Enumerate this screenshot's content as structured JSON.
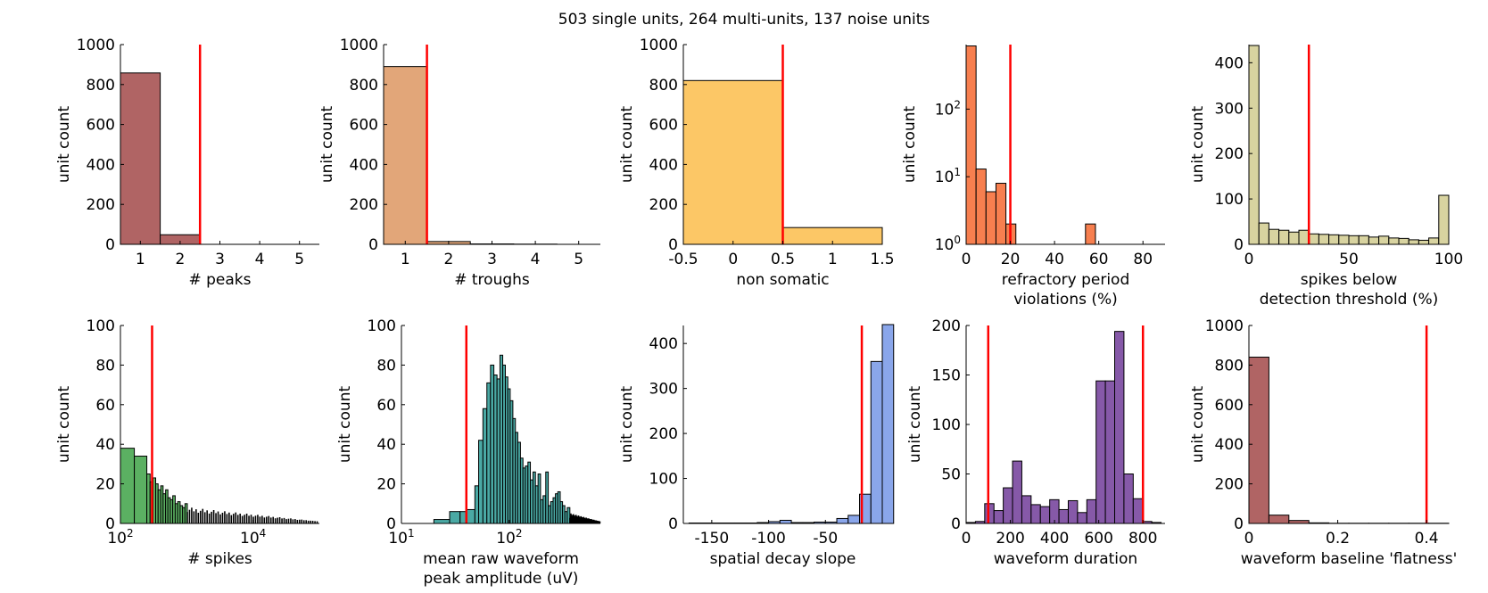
{
  "figure": {
    "title": "503 single units, 264 multi-units, 137 noise units",
    "threshold_color": "#ff0000"
  },
  "chart_data": [
    {
      "type": "bar",
      "xlabel": [
        "# peaks"
      ],
      "ylabel": "unit count",
      "xlim": [
        0.5,
        5.5
      ],
      "ylim": [
        0,
        1000
      ],
      "xticks": [
        1,
        2,
        3,
        4,
        5
      ],
      "xtick_labels": [
        "1",
        "2",
        "3",
        "4",
        "5"
      ],
      "yticks": [
        0,
        200,
        400,
        600,
        800,
        1000
      ],
      "ytick_labels": [
        "0",
        "200",
        "400",
        "600",
        "800",
        "1000"
      ],
      "bar_color": "#b06464",
      "bins": [
        [
          0.5,
          1.5,
          858
        ],
        [
          1.5,
          2.5,
          48
        ],
        [
          2.5,
          3.5,
          0
        ],
        [
          3.5,
          4.5,
          0
        ],
        [
          4.5,
          5.5,
          0
        ]
      ],
      "thresholds": [
        2.5
      ]
    },
    {
      "type": "bar",
      "xlabel": [
        "# troughs"
      ],
      "ylabel": "unit count",
      "xlim": [
        0.5,
        5.5
      ],
      "ylim": [
        0,
        1000
      ],
      "xticks": [
        1,
        2,
        3,
        4,
        5
      ],
      "xtick_labels": [
        "1",
        "2",
        "3",
        "4",
        "5"
      ],
      "yticks": [
        0,
        200,
        400,
        600,
        800,
        1000
      ],
      "ytick_labels": [
        "0",
        "200",
        "400",
        "600",
        "800",
        "1000"
      ],
      "bar_color": "#e2a679",
      "bins": [
        [
          0.5,
          1.5,
          890
        ],
        [
          1.5,
          2.5,
          14
        ],
        [
          2.5,
          3.5,
          2
        ],
        [
          3.5,
          4.5,
          1
        ],
        [
          4.5,
          5.5,
          0
        ]
      ],
      "thresholds": [
        1.5
      ]
    },
    {
      "type": "bar",
      "xlabel": [
        "non somatic"
      ],
      "ylabel": "unit count",
      "xlim": [
        -0.5,
        1.5
      ],
      "ylim": [
        0,
        1000
      ],
      "xticks": [
        -0.5,
        0,
        0.5,
        1,
        1.5
      ],
      "xtick_labels": [
        "-0.5",
        "0",
        "0.5",
        "1",
        "1.5"
      ],
      "yticks": [
        0,
        200,
        400,
        600,
        800,
        1000
      ],
      "ytick_labels": [
        "0",
        "200",
        "400",
        "600",
        "800",
        "1000"
      ],
      "bar_color": "#fcc766",
      "bins": [
        [
          -0.5,
          0.5,
          820
        ],
        [
          0.5,
          1.5,
          84
        ]
      ],
      "thresholds": [
        0.5
      ]
    },
    {
      "type": "bar",
      "yscale": "log",
      "xlabel": [
        "refractory period",
        "violations (%)"
      ],
      "ylabel": "unit count",
      "xlim": [
        0,
        90
      ],
      "ylim": [
        1,
        900
      ],
      "xticks": [
        0,
        20,
        40,
        60,
        80
      ],
      "xtick_labels": [
        "0",
        "20",
        "40",
        "60",
        "80"
      ],
      "yticks": [
        1,
        10,
        100
      ],
      "ytick_labels": [
        {
          "base": "10",
          "exp": "0"
        },
        {
          "base": "10",
          "exp": "1"
        },
        {
          "base": "10",
          "exp": "2"
        }
      ],
      "bar_color": "#f77f4f",
      "bins": [
        [
          0,
          4.5,
          860
        ],
        [
          4.5,
          9,
          13
        ],
        [
          9,
          13.5,
          6
        ],
        [
          13.5,
          18,
          8
        ],
        [
          18,
          22.5,
          2
        ],
        [
          22.5,
          27,
          1
        ],
        [
          27,
          31.5,
          1
        ],
        [
          31.5,
          36,
          1
        ],
        [
          36,
          40.5,
          1
        ],
        [
          40.5,
          45,
          1
        ],
        [
          45,
          49.5,
          1
        ],
        [
          49.5,
          54,
          1
        ],
        [
          54,
          58.5,
          2
        ],
        [
          58.5,
          63,
          1
        ],
        [
          63,
          67.5,
          1
        ],
        [
          67.5,
          72,
          1
        ],
        [
          72,
          76.5,
          1
        ],
        [
          76.5,
          81,
          1
        ],
        [
          81,
          85.5,
          1
        ],
        [
          85.5,
          90,
          1
        ]
      ],
      "thresholds": [
        20
      ]
    },
    {
      "type": "bar",
      "xlabel": [
        "spikes below",
        "detection threshold (%)"
      ],
      "ylabel": "unit count",
      "xlim": [
        0,
        100
      ],
      "ylim": [
        0,
        440
      ],
      "xticks": [
        0,
        50,
        100
      ],
      "xtick_labels": [
        "0",
        "50",
        "100"
      ],
      "yticks": [
        0,
        100,
        200,
        300,
        400
      ],
      "ytick_labels": [
        "0",
        "100",
        "200",
        "300",
        "400"
      ],
      "bar_color": "#d8d3a0",
      "bins": [
        [
          0,
          5,
          438
        ],
        [
          5,
          10,
          47
        ],
        [
          10,
          15,
          33
        ],
        [
          15,
          20,
          31
        ],
        [
          20,
          25,
          27
        ],
        [
          25,
          30,
          31
        ],
        [
          30,
          35,
          23
        ],
        [
          35,
          40,
          22
        ],
        [
          40,
          45,
          21
        ],
        [
          45,
          50,
          20
        ],
        [
          50,
          55,
          19
        ],
        [
          55,
          60,
          19
        ],
        [
          60,
          65,
          16
        ],
        [
          65,
          70,
          18
        ],
        [
          70,
          75,
          14
        ],
        [
          75,
          80,
          13
        ],
        [
          80,
          85,
          10
        ],
        [
          85,
          90,
          9
        ],
        [
          90,
          95,
          14
        ],
        [
          95,
          100,
          108
        ]
      ],
      "thresholds": [
        30
      ]
    },
    {
      "type": "bar",
      "xscale": "log",
      "xlabel": [
        "# spikes"
      ],
      "ylabel": "unit count",
      "xlim": [
        100,
        100000
      ],
      "ylim": [
        0,
        100
      ],
      "xticks": [
        100,
        10000
      ],
      "xtick_labels": [
        {
          "base": "10",
          "exp": "2"
        },
        {
          "base": "10",
          "exp": "4"
        }
      ],
      "yticks": [
        0,
        20,
        40,
        60,
        80,
        100
      ],
      "ytick_labels": [
        "0",
        "20",
        "40",
        "60",
        "80",
        "100"
      ],
      "bar_color": "#5bb062",
      "green_bins": [
        [
          100,
          162,
          38
        ],
        [
          162,
          250,
          34
        ],
        [
          250,
          280,
          25
        ],
        [
          280,
          310,
          21
        ],
        [
          310,
          340,
          23
        ],
        [
          340,
          370,
          20
        ],
        [
          370,
          405,
          17
        ],
        [
          405,
          440,
          19
        ],
        [
          440,
          480,
          15
        ],
        [
          480,
          520,
          17
        ],
        [
          520,
          565,
          13
        ],
        [
          565,
          615,
          12
        ],
        [
          615,
          670,
          14
        ],
        [
          670,
          730,
          10
        ],
        [
          730,
          795,
          11
        ],
        [
          795,
          865,
          9
        ],
        [
          865,
          940,
          8
        ],
        [
          940,
          1020,
          10
        ]
      ],
      "black_tail": {
        "start": 1020,
        "end": 100000,
        "count_start": 7,
        "count_end": 1
      },
      "thresholds": [
        300
      ]
    },
    {
      "type": "bar",
      "xscale": "log",
      "xlabel": [
        "mean raw waveform",
        "peak amplitude (uV)"
      ],
      "ylabel": "unit count",
      "xlim": [
        10,
        700
      ],
      "ylim": [
        0,
        100
      ],
      "xticks": [
        10,
        100
      ],
      "xtick_labels": [
        {
          "base": "10",
          "exp": "1"
        },
        {
          "base": "10",
          "exp": "2"
        }
      ],
      "yticks": [
        0,
        20,
        40,
        60,
        80,
        100
      ],
      "ytick_labels": [
        "0",
        "20",
        "40",
        "60",
        "80",
        "100"
      ],
      "bar_color": "#4aa9a4",
      "bins": [
        [
          20,
          28,
          2
        ],
        [
          28,
          35,
          6
        ],
        [
          35,
          40,
          6
        ],
        [
          40,
          48,
          7
        ],
        [
          48,
          52,
          19
        ],
        [
          52,
          57,
          42
        ],
        [
          57,
          62,
          58
        ],
        [
          62,
          67,
          71
        ],
        [
          67,
          72,
          80
        ],
        [
          72,
          77,
          75
        ],
        [
          77,
          82,
          73
        ],
        [
          82,
          87,
          85
        ],
        [
          87,
          92,
          80
        ],
        [
          92,
          97,
          74
        ],
        [
          97,
          102,
          68
        ],
        [
          102,
          108,
          62
        ],
        [
          108,
          114,
          53
        ],
        [
          114,
          120,
          46
        ],
        [
          120,
          127,
          41
        ],
        [
          127,
          134,
          33
        ],
        [
          134,
          141,
          28
        ],
        [
          141,
          149,
          29
        ],
        [
          149,
          157,
          31
        ],
        [
          157,
          166,
          22
        ],
        [
          166,
          175,
          26
        ],
        [
          175,
          185,
          19
        ],
        [
          185,
          195,
          25
        ],
        [
          195,
          206,
          12
        ],
        [
          206,
          218,
          14
        ],
        [
          218,
          230,
          26
        ],
        [
          230,
          242,
          9
        ],
        [
          242,
          255,
          11
        ],
        [
          255,
          268,
          13
        ],
        [
          268,
          282,
          15
        ],
        [
          282,
          297,
          16
        ],
        [
          297,
          312,
          11
        ],
        [
          312,
          328,
          9
        ],
        [
          328,
          345,
          6
        ],
        [
          345,
          365,
          8
        ]
      ],
      "black_tail": {
        "start": 365,
        "end": 700,
        "count_start": 4,
        "count_end": 1
      },
      "thresholds": [
        40
      ]
    },
    {
      "type": "bar",
      "xlabel": [
        "spatial decay slope"
      ],
      "ylabel": "unit count",
      "xlim": [
        -175,
        0
      ],
      "ylim": [
        0,
        440
      ],
      "xticks": [
        -150,
        -100,
        -50
      ],
      "xtick_labels": [
        "-150",
        "-100",
        "-50"
      ],
      "yticks": [
        0,
        100,
        200,
        300,
        400
      ],
      "ytick_labels": [
        "0",
        "100",
        "200",
        "300",
        "400"
      ],
      "bar_color": "#8aa6ea",
      "bins": [
        [
          -170,
          -160,
          1
        ],
        [
          -160,
          -150,
          1
        ],
        [
          -150,
          -140,
          1
        ],
        [
          -140,
          -130,
          1
        ],
        [
          -130,
          -120,
          1
        ],
        [
          -120,
          -110,
          1
        ],
        [
          -110,
          -100,
          2
        ],
        [
          -100,
          -90,
          4
        ],
        [
          -90,
          -80,
          7
        ],
        [
          -80,
          -70,
          2
        ],
        [
          -70,
          -60,
          2
        ],
        [
          -60,
          -50,
          3
        ],
        [
          -50,
          -40,
          3
        ],
        [
          -40,
          -30,
          11
        ],
        [
          -30,
          -20,
          18
        ],
        [
          -20,
          -10,
          65
        ],
        [
          -10,
          0,
          360
        ],
        [
          0,
          10,
          442
        ]
      ],
      "thresholds": [
        -18
      ]
    },
    {
      "type": "bar",
      "xlabel": [
        "waveform duration"
      ],
      "ylabel": "unit count",
      "xlim": [
        0,
        900
      ],
      "ylim": [
        0,
        200
      ],
      "xticks": [
        0,
        200,
        400,
        600,
        800
      ],
      "xtick_labels": [
        "0",
        "200",
        "400",
        "600",
        "800"
      ],
      "yticks": [
        0,
        50,
        100,
        150,
        200
      ],
      "ytick_labels": [
        "0",
        "50",
        "100",
        "150",
        "200"
      ],
      "bar_color": "#8659a8",
      "bins": [
        [
          0,
          42,
          1
        ],
        [
          42,
          84,
          2
        ],
        [
          84,
          126,
          20
        ],
        [
          126,
          168,
          13
        ],
        [
          168,
          210,
          36
        ],
        [
          210,
          252,
          63
        ],
        [
          252,
          294,
          28
        ],
        [
          294,
          336,
          19
        ],
        [
          336,
          378,
          17
        ],
        [
          378,
          420,
          24
        ],
        [
          420,
          462,
          14
        ],
        [
          462,
          504,
          23
        ],
        [
          504,
          546,
          11
        ],
        [
          546,
          588,
          24
        ],
        [
          588,
          630,
          144
        ],
        [
          630,
          672,
          144
        ],
        [
          672,
          714,
          194
        ],
        [
          714,
          756,
          50
        ],
        [
          756,
          798,
          25
        ],
        [
          798,
          840,
          2
        ],
        [
          840,
          882,
          1
        ]
      ],
      "thresholds": [
        100,
        800
      ]
    },
    {
      "type": "bar",
      "xlabel": [
        "waveform baseline 'flatness'"
      ],
      "ylabel": "unit count",
      "xlim": [
        0,
        0.45
      ],
      "ylim": [
        0,
        1000
      ],
      "xticks": [
        0,
        0.2,
        0.4
      ],
      "xtick_labels": [
        "0",
        "0.2",
        "0.4"
      ],
      "yticks": [
        0,
        200,
        400,
        600,
        800,
        1000
      ],
      "ytick_labels": [
        "0",
        "200",
        "400",
        "600",
        "800",
        "1000"
      ],
      "bar_color": "#b06464",
      "bins": [
        [
          0,
          0.045,
          840
        ],
        [
          0.045,
          0.09,
          42
        ],
        [
          0.09,
          0.135,
          15
        ],
        [
          0.135,
          0.18,
          3
        ],
        [
          0.18,
          0.225,
          1
        ],
        [
          0.225,
          0.27,
          1
        ],
        [
          0.27,
          0.315,
          1
        ],
        [
          0.315,
          0.36,
          1
        ],
        [
          0.36,
          0.405,
          1
        ],
        [
          0.405,
          0.45,
          1
        ]
      ],
      "thresholds": [
        0.4
      ]
    }
  ]
}
